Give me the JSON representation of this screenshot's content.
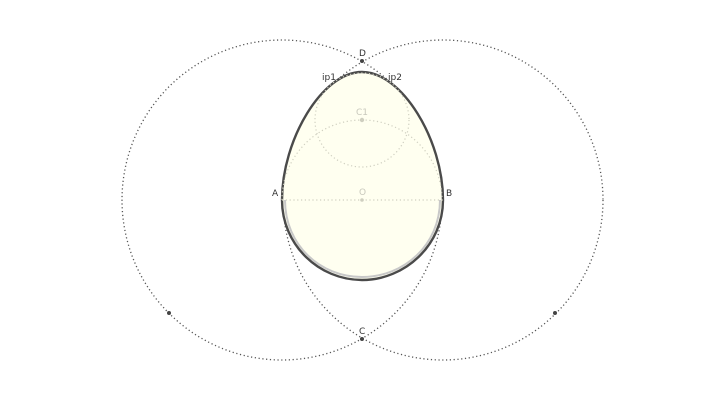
{
  "diagram": {
    "title": "",
    "colors": {
      "egg_fill": "#fffff0",
      "egg_stroke": "#4a4a4a",
      "egg_inner_stroke": "#c8c8c8",
      "construction_dark": "#555555",
      "construction_light": "#cfcfc0",
      "label_dark": "#333333",
      "label_light": "#c8c8bc"
    },
    "labels": {
      "A": "A",
      "B": "B",
      "C": "C",
      "D": "D",
      "O": "O",
      "C1": "C1",
      "ip1": "ip1",
      "ip2": "ip2"
    }
  }
}
